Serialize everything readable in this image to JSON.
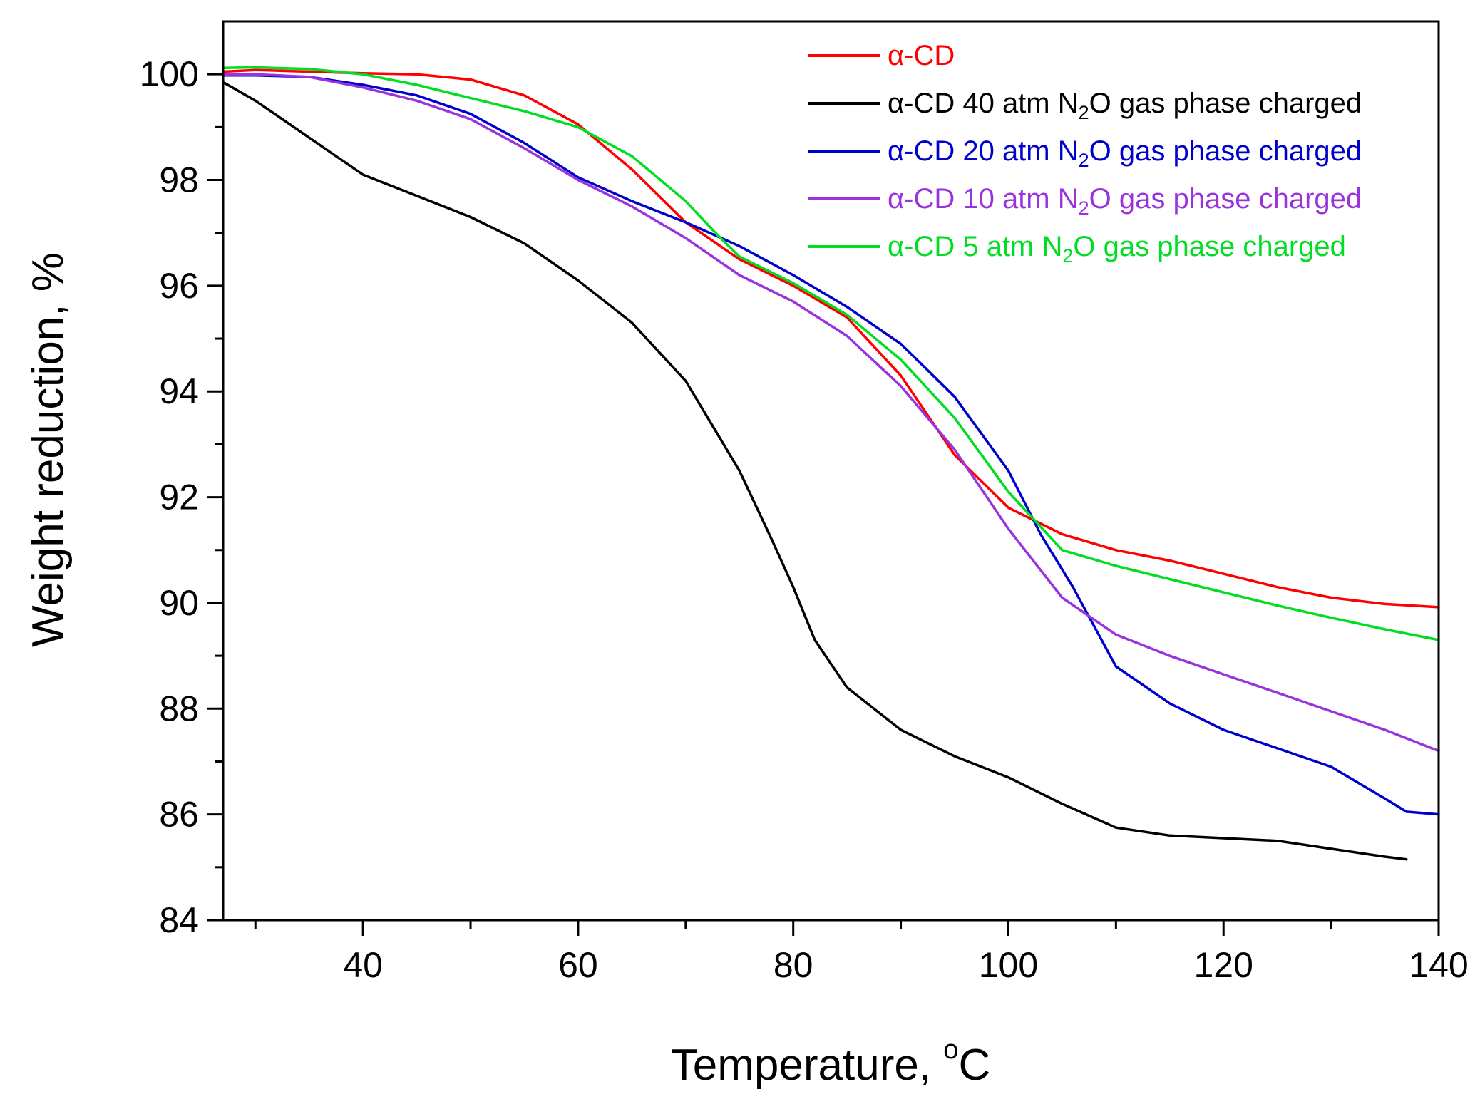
{
  "chart_data": {
    "type": "line",
    "title": "",
    "xlabel": "Temperature, °C",
    "xlabel_main": "Temperature, ",
    "xlabel_degree": "o",
    "xlabel_unit": "C",
    "ylabel": "Weight reduction, %",
    "xlim": [
      27,
      140
    ],
    "ylim": [
      84,
      101
    ],
    "x_ticks": [
      40,
      60,
      80,
      100,
      120,
      140
    ],
    "x_tick_labels": [
      "40",
      "60",
      "80",
      "100",
      "120",
      "140"
    ],
    "y_ticks": [
      84,
      86,
      88,
      90,
      92,
      94,
      96,
      98,
      100
    ],
    "y_tick_labels": [
      "84",
      "86",
      "88",
      "90",
      "92",
      "94",
      "96",
      "98",
      "100"
    ],
    "legend_position": "top-right",
    "series": [
      {
        "name": "α-CD",
        "legend_parts": [
          "α-CD"
        ],
        "color": "#ff0000",
        "points": [
          [
            27,
            100.05
          ],
          [
            30,
            100.08
          ],
          [
            35,
            100.05
          ],
          [
            40,
            100.02
          ],
          [
            45,
            100.0
          ],
          [
            50,
            99.9
          ],
          [
            55,
            99.6
          ],
          [
            60,
            99.05
          ],
          [
            65,
            98.2
          ],
          [
            70,
            97.2
          ],
          [
            75,
            96.5
          ],
          [
            80,
            96.0
          ],
          [
            85,
            95.4
          ],
          [
            90,
            94.3
          ],
          [
            95,
            92.8
          ],
          [
            100,
            91.8
          ],
          [
            105,
            91.3
          ],
          [
            110,
            91.0
          ],
          [
            115,
            90.8
          ],
          [
            120,
            90.55
          ],
          [
            125,
            90.3
          ],
          [
            130,
            90.1
          ],
          [
            135,
            89.98
          ],
          [
            140,
            89.92
          ]
        ]
      },
      {
        "name": "α-CD 40 atm N2O gas phase charged",
        "legend_parts": [
          "α-CD 40 atm N",
          "2",
          "O gas phase charged"
        ],
        "color": "#000000",
        "points": [
          [
            27,
            99.85
          ],
          [
            30,
            99.5
          ],
          [
            35,
            98.8
          ],
          [
            40,
            98.1
          ],
          [
            45,
            97.7
          ],
          [
            50,
            97.3
          ],
          [
            55,
            96.8
          ],
          [
            60,
            96.1
          ],
          [
            65,
            95.3
          ],
          [
            70,
            94.2
          ],
          [
            75,
            92.5
          ],
          [
            78,
            91.2
          ],
          [
            80,
            90.3
          ],
          [
            82,
            89.3
          ],
          [
            85,
            88.4
          ],
          [
            90,
            87.6
          ],
          [
            95,
            87.1
          ],
          [
            100,
            86.7
          ],
          [
            105,
            86.2
          ],
          [
            110,
            85.75
          ],
          [
            115,
            85.6
          ],
          [
            120,
            85.55
          ],
          [
            125,
            85.5
          ],
          [
            130,
            85.35
          ],
          [
            135,
            85.2
          ],
          [
            137,
            85.15
          ]
        ]
      },
      {
        "name": "α-CD 20 atm N2O gas phase charged",
        "legend_parts": [
          "α-CD 20 atm N",
          "2",
          "O gas phase charged"
        ],
        "color": "#0000cc",
        "points": [
          [
            27,
            99.98
          ],
          [
            30,
            99.98
          ],
          [
            35,
            99.95
          ],
          [
            40,
            99.8
          ],
          [
            45,
            99.6
          ],
          [
            50,
            99.25
          ],
          [
            55,
            98.7
          ],
          [
            60,
            98.05
          ],
          [
            65,
            97.6
          ],
          [
            70,
            97.2
          ],
          [
            75,
            96.75
          ],
          [
            80,
            96.2
          ],
          [
            85,
            95.6
          ],
          [
            90,
            94.9
          ],
          [
            95,
            93.9
          ],
          [
            100,
            92.5
          ],
          [
            103,
            91.3
          ],
          [
            106,
            90.3
          ],
          [
            110,
            88.8
          ],
          [
            115,
            88.1
          ],
          [
            120,
            87.6
          ],
          [
            125,
            87.25
          ],
          [
            130,
            86.9
          ],
          [
            135,
            86.3
          ],
          [
            137,
            86.05
          ],
          [
            140,
            86.0
          ]
        ]
      },
      {
        "name": "α-CD 10 atm N2O gas phase charged",
        "legend_parts": [
          "α-CD 10 atm N",
          "2",
          "O gas phase charged"
        ],
        "color": "#9933dd",
        "points": [
          [
            27,
            100.0
          ],
          [
            30,
            100.0
          ],
          [
            35,
            99.95
          ],
          [
            40,
            99.75
          ],
          [
            45,
            99.5
          ],
          [
            50,
            99.15
          ],
          [
            55,
            98.6
          ],
          [
            60,
            98.0
          ],
          [
            65,
            97.5
          ],
          [
            70,
            96.9
          ],
          [
            75,
            96.2
          ],
          [
            80,
            95.7
          ],
          [
            85,
            95.05
          ],
          [
            90,
            94.1
          ],
          [
            95,
            92.9
          ],
          [
            100,
            91.4
          ],
          [
            105,
            90.1
          ],
          [
            110,
            89.4
          ],
          [
            115,
            89.0
          ],
          [
            120,
            88.65
          ],
          [
            125,
            88.3
          ],
          [
            130,
            87.95
          ],
          [
            135,
            87.6
          ],
          [
            140,
            87.2
          ]
        ]
      },
      {
        "name": "α-CD 5 atm N2O gas phase charged",
        "legend_parts": [
          "α-CD 5 atm N",
          "2",
          "O gas phase charged"
        ],
        "color": "#00dd22",
        "points": [
          [
            27,
            100.12
          ],
          [
            30,
            100.13
          ],
          [
            35,
            100.1
          ],
          [
            40,
            100.0
          ],
          [
            45,
            99.8
          ],
          [
            50,
            99.55
          ],
          [
            55,
            99.3
          ],
          [
            60,
            99.0
          ],
          [
            65,
            98.45
          ],
          [
            70,
            97.6
          ],
          [
            73,
            96.95
          ],
          [
            75,
            96.55
          ],
          [
            80,
            96.05
          ],
          [
            85,
            95.45
          ],
          [
            90,
            94.6
          ],
          [
            95,
            93.5
          ],
          [
            100,
            92.1
          ],
          [
            105,
            91.0
          ],
          [
            110,
            90.7
          ],
          [
            115,
            90.45
          ],
          [
            120,
            90.2
          ],
          [
            125,
            89.95
          ],
          [
            130,
            89.72
          ],
          [
            135,
            89.5
          ],
          [
            140,
            89.3
          ]
        ]
      }
    ]
  }
}
